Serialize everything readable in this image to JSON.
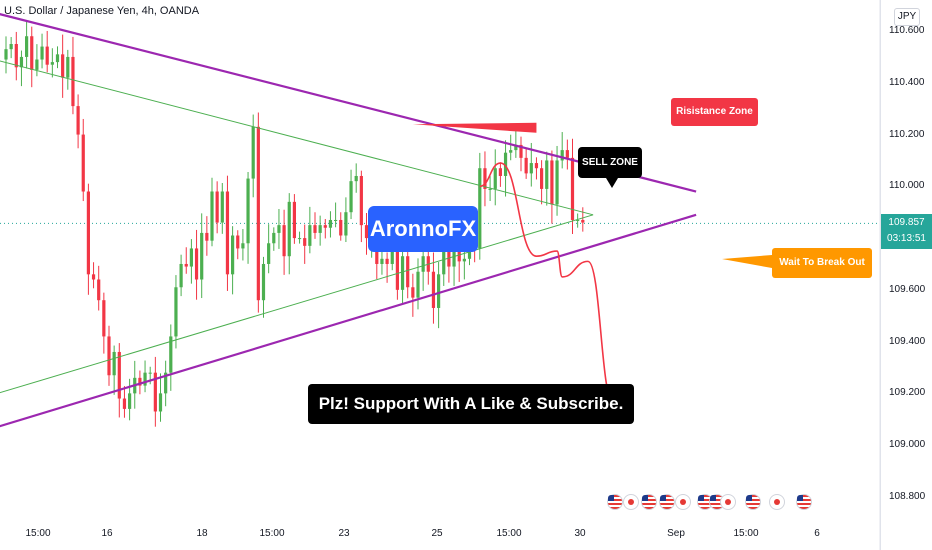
{
  "header": {
    "title": "U.S. Dollar / Japanese Yen, 4h, OANDA"
  },
  "axis": {
    "currency": "JPY",
    "y_ticks": [
      "110.600",
      "110.400",
      "110.200",
      "110.000",
      "109.800",
      "109.600",
      "109.400",
      "109.200",
      "109.000",
      "108.800"
    ],
    "x_ticks": [
      "15:00",
      "16",
      "18",
      "15:00",
      "23",
      "25",
      "15:00",
      "30",
      "Sep",
      "15:00",
      "6"
    ],
    "last_price": "109.857",
    "countdown": "03:13:51"
  },
  "labels": {
    "resistance": "Risistance Zone",
    "sell": "SELL ZONE",
    "wait": "Wait To Break Out",
    "brand": "AronnoFX",
    "support": "Plz! Support With A Like & Subscribe."
  },
  "colors": {
    "up": "#26a69a",
    "up_candle": "#4caf50",
    "down": "#f23645",
    "channel": "#9c27b0",
    "inner_lines": "#4caf50",
    "projection": "#f23645",
    "label_red": "#f23645",
    "label_orange": "#ff9800",
    "label_blue": "#2962ff"
  },
  "chart_data": {
    "type": "candlestick",
    "symbol": "USDJPY",
    "timeframe": "4h",
    "ylim": [
      108.73,
      110.72
    ],
    "last_price": 109.857,
    "closes": [
      110.53,
      110.55,
      110.46,
      110.5,
      110.58,
      110.45,
      110.49,
      110.54,
      110.47,
      110.48,
      110.51,
      110.42,
      110.5,
      110.31,
      110.2,
      109.98,
      109.66,
      109.64,
      109.56,
      109.42,
      109.27,
      109.36,
      109.18,
      109.14,
      109.2,
      109.26,
      109.23,
      109.28,
      109.28,
      109.13,
      109.2,
      109.28,
      109.42,
      109.61,
      109.7,
      109.69,
      109.76,
      109.64,
      109.82,
      109.79,
      109.98,
      109.86,
      109.98,
      109.66,
      109.81,
      109.76,
      109.78,
      110.03,
      110.23,
      109.56,
      109.7,
      109.78,
      109.82,
      109.85,
      109.73,
      109.94,
      109.8,
      109.8,
      109.77,
      109.85,
      109.82,
      109.85,
      109.84,
      109.87,
      109.87,
      109.81,
      109.9,
      110.02,
      110.04,
      109.85,
      109.8,
      109.83,
      109.7,
      109.72,
      109.7,
      109.76,
      109.6,
      109.73,
      109.61,
      109.57,
      109.67,
      109.73,
      109.67,
      109.53,
      109.66,
      109.75,
      109.69,
      109.76,
      109.71,
      109.72,
      109.78,
      109.76,
      110.07,
      109.99,
      109.99,
      110.07,
      110.04,
      110.13,
      110.14,
      110.16,
      110.11,
      110.05,
      110.09,
      110.07,
      109.99,
      110.1,
      109.93,
      110.1,
      110.14,
      110.11,
      109.87,
      109.87,
      109.86
    ],
    "channel_upper": {
      "from": [
        -10,
        110.71
      ],
      "to": [
        134,
        109.98
      ]
    },
    "channel_lower": {
      "from": [
        -10,
        109.02
      ],
      "to": [
        134,
        109.89
      ]
    },
    "inner_upper": {
      "from": [
        -10,
        110.53
      ],
      "to": [
        114,
        109.89
      ]
    },
    "inner_lower": {
      "from": [
        -10,
        109.15
      ],
      "to": [
        114,
        109.89
      ]
    },
    "resistance_arrow": {
      "from": [
        79,
        110.24
      ],
      "to": [
        103,
        110.23
      ]
    },
    "projection_path": [
      [
        92,
        110.0
      ],
      [
        96,
        110.09
      ],
      [
        103,
        109.73
      ],
      [
        107,
        109.75
      ],
      [
        108,
        109.65
      ],
      [
        113,
        109.71
      ],
      [
        118,
        109.16
      ]
    ]
  }
}
